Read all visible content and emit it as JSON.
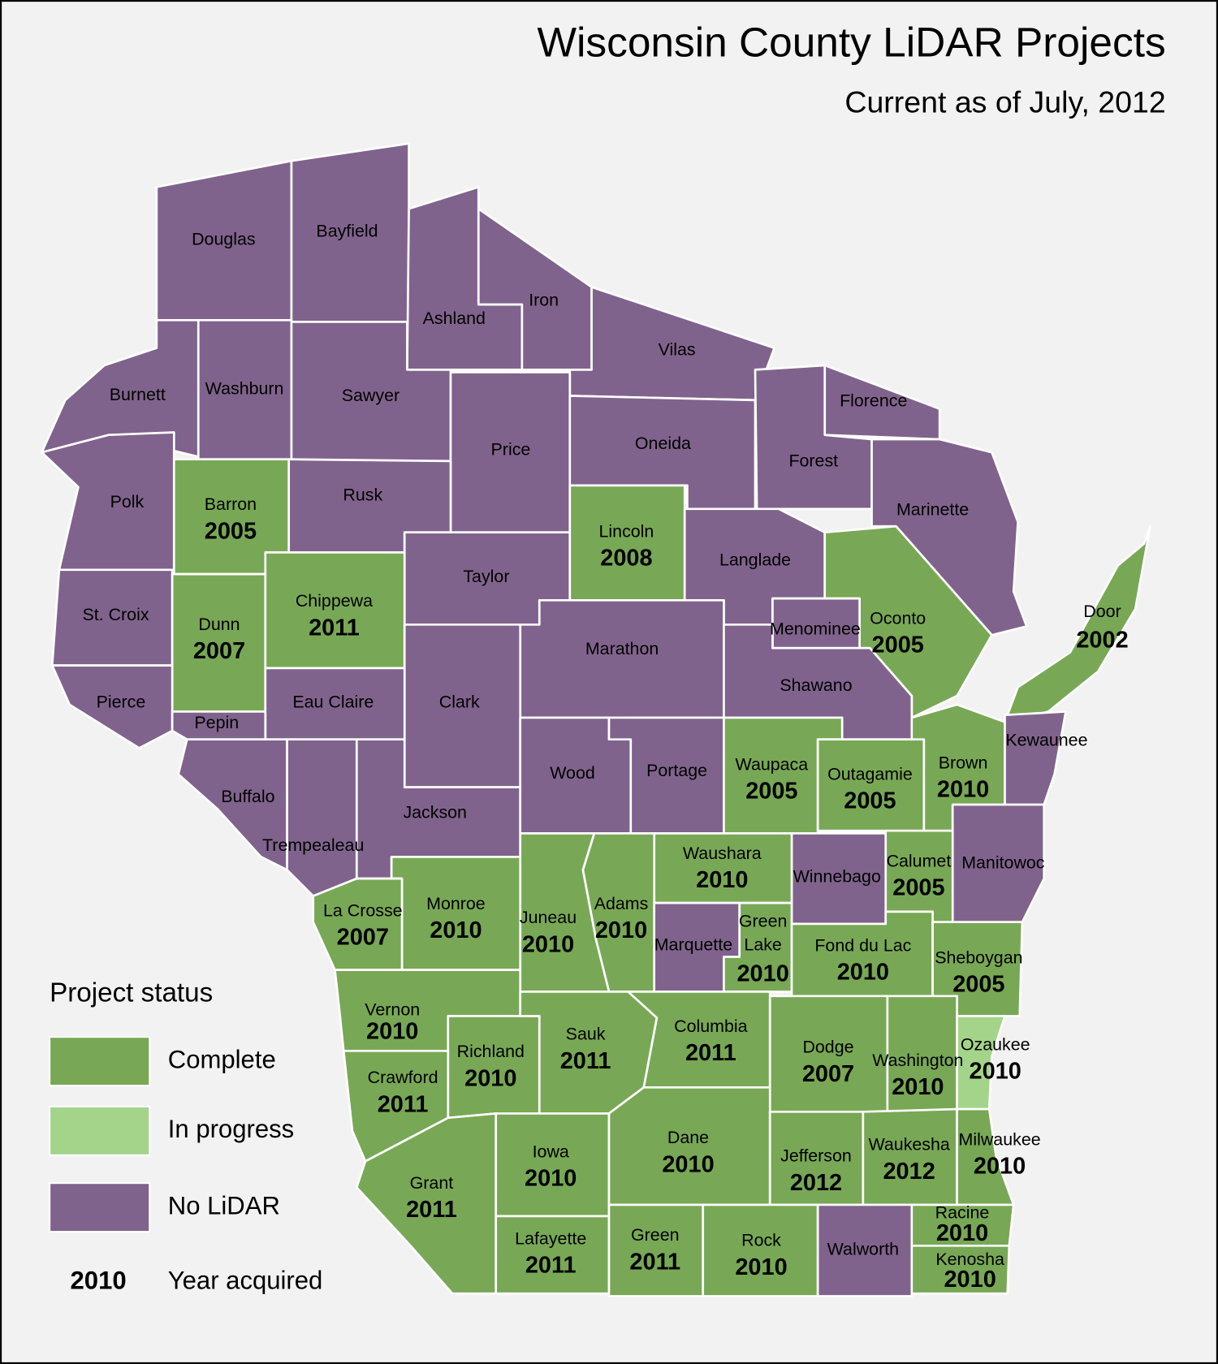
{
  "title": "Wisconsin County LiDAR Projects",
  "subtitle": "Current as of July, 2012",
  "legend": {
    "title": "Project status",
    "items": [
      {
        "label": "Complete",
        "color": "#78a855"
      },
      {
        "label": "In progress",
        "color": "#a3d48a"
      },
      {
        "label": "No LiDAR",
        "color": "#80638c"
      }
    ],
    "year_sample": 2010,
    "year_label": "Year acquired"
  },
  "counties": [
    {
      "name": "Douglas",
      "status": "No LiDAR"
    },
    {
      "name": "Bayfield",
      "status": "No LiDAR"
    },
    {
      "name": "Ashland",
      "status": "No LiDAR"
    },
    {
      "name": "Iron",
      "status": "No LiDAR"
    },
    {
      "name": "Vilas",
      "status": "No LiDAR"
    },
    {
      "name": "Florence",
      "status": "No LiDAR"
    },
    {
      "name": "Forest",
      "status": "No LiDAR"
    },
    {
      "name": "Marinette",
      "status": "No LiDAR"
    },
    {
      "name": "Burnett",
      "status": "No LiDAR"
    },
    {
      "name": "Washburn",
      "status": "No LiDAR"
    },
    {
      "name": "Sawyer",
      "status": "No LiDAR"
    },
    {
      "name": "Price",
      "status": "No LiDAR"
    },
    {
      "name": "Oneida",
      "status": "No LiDAR"
    },
    {
      "name": "Polk",
      "status": "No LiDAR"
    },
    {
      "name": "Barron",
      "status": "Complete",
      "year": 2005
    },
    {
      "name": "Rusk",
      "status": "No LiDAR"
    },
    {
      "name": "Taylor",
      "status": "No LiDAR"
    },
    {
      "name": "Lincoln",
      "status": "Complete",
      "year": 2008
    },
    {
      "name": "Langlade",
      "status": "No LiDAR"
    },
    {
      "name": "Oconto",
      "status": "Complete",
      "year": 2005
    },
    {
      "name": "Menominee",
      "status": "No LiDAR"
    },
    {
      "name": "St. Croix",
      "status": "No LiDAR"
    },
    {
      "name": "Dunn",
      "status": "Complete",
      "year": 2007
    },
    {
      "name": "Chippewa",
      "status": "Complete",
      "year": 2011
    },
    {
      "name": "Marathon",
      "status": "No LiDAR"
    },
    {
      "name": "Shawano",
      "status": "No LiDAR"
    },
    {
      "name": "Clark",
      "status": "No LiDAR"
    },
    {
      "name": "Pierce",
      "status": "No LiDAR"
    },
    {
      "name": "Eau Claire",
      "status": "No LiDAR"
    },
    {
      "name": "Pepin",
      "status": "No LiDAR"
    },
    {
      "name": "Buffalo",
      "status": "No LiDAR"
    },
    {
      "name": "Trempealeau",
      "status": "No LiDAR"
    },
    {
      "name": "Jackson",
      "status": "No LiDAR"
    },
    {
      "name": "Wood",
      "status": "No LiDAR"
    },
    {
      "name": "Portage",
      "status": "No LiDAR"
    },
    {
      "name": "Waupaca",
      "status": "Complete",
      "year": 2005
    },
    {
      "name": "Outagamie",
      "status": "Complete",
      "year": 2005
    },
    {
      "name": "Brown",
      "status": "Complete",
      "year": 2010
    },
    {
      "name": "Door",
      "status": "Complete",
      "year": 2002
    },
    {
      "name": "Kewaunee",
      "status": "No LiDAR"
    },
    {
      "name": "Manitowoc",
      "status": "No LiDAR"
    },
    {
      "name": "Calumet",
      "status": "Complete",
      "year": 2005
    },
    {
      "name": "Winnebago",
      "status": "No LiDAR"
    },
    {
      "name": "Waushara",
      "status": "Complete",
      "year": 2010
    },
    {
      "name": "Adams",
      "status": "Complete",
      "year": 2010
    },
    {
      "name": "Juneau",
      "status": "Complete",
      "year": 2010
    },
    {
      "name": "Monroe",
      "status": "Complete",
      "year": 2010
    },
    {
      "name": "La Crosse",
      "status": "Complete",
      "year": 2007
    },
    {
      "name": "Marquette",
      "status": "No LiDAR"
    },
    {
      "name": "Green Lake",
      "status": "Complete",
      "year": 2010
    },
    {
      "name": "Fond du Lac",
      "status": "Complete",
      "year": 2010
    },
    {
      "name": "Sheboygan",
      "status": "Complete",
      "year": 2005
    },
    {
      "name": "Vernon",
      "status": "Complete",
      "year": 2010
    },
    {
      "name": "Richland",
      "status": "Complete",
      "year": 2010
    },
    {
      "name": "Sauk",
      "status": "Complete",
      "year": 2011
    },
    {
      "name": "Columbia",
      "status": "Complete",
      "year": 2011
    },
    {
      "name": "Dodge",
      "status": "Complete",
      "year": 2007
    },
    {
      "name": "Washington",
      "status": "Complete",
      "year": 2010
    },
    {
      "name": "Ozaukee",
      "status": "In progress",
      "year": 2010
    },
    {
      "name": "Crawford",
      "status": "Complete",
      "year": 2011
    },
    {
      "name": "Grant",
      "status": "Complete",
      "year": 2011
    },
    {
      "name": "Iowa",
      "status": "Complete",
      "year": 2010
    },
    {
      "name": "Dane",
      "status": "Complete",
      "year": 2010
    },
    {
      "name": "Jefferson",
      "status": "Complete",
      "year": 2012
    },
    {
      "name": "Waukesha",
      "status": "Complete",
      "year": 2012
    },
    {
      "name": "Milwaukee",
      "status": "Complete",
      "year": 2010
    },
    {
      "name": "Lafayette",
      "status": "Complete",
      "year": 2011
    },
    {
      "name": "Green",
      "status": "Complete",
      "year": 2011
    },
    {
      "name": "Rock",
      "status": "Complete",
      "year": 2010
    },
    {
      "name": "Walworth",
      "status": "No LiDAR"
    },
    {
      "name": "Racine",
      "status": "Complete",
      "year": 2010
    },
    {
      "name": "Kenosha",
      "status": "Complete",
      "year": 2010
    }
  ]
}
